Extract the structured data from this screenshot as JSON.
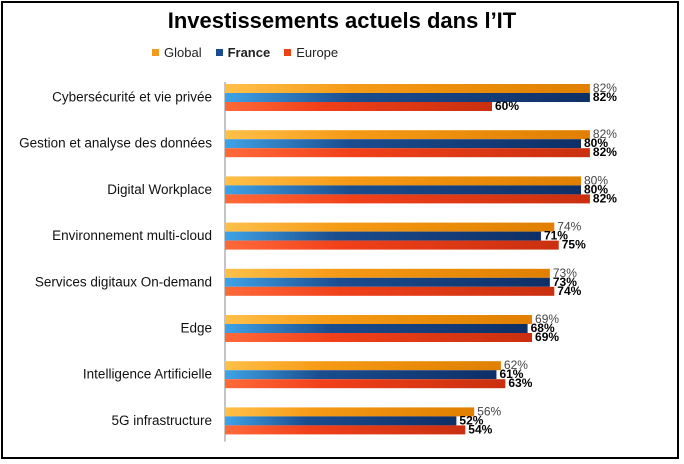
{
  "chart_data": {
    "type": "bar",
    "orientation": "horizontal",
    "title": "Investissements actuels dans l’IT",
    "categories": [
      "Cybersécurité et vie privée",
      "Gestion et analyse des données",
      "Digital Workplace",
      "Environnement multi-cloud",
      "Services digitaux On-demand",
      "Edge",
      "Intelligence Artificielle",
      "5G infrastructure"
    ],
    "series": [
      {
        "name": "Global",
        "values": [
          82,
          82,
          80,
          74,
          73,
          69,
          62,
          56
        ],
        "labels": [
          "82%",
          "82%",
          "80%",
          "74%",
          "73%",
          "69%",
          "62%",
          "56%"
        ],
        "color": "#f59a16",
        "bold": false
      },
      {
        "name": "France",
        "values": [
          82,
          80,
          80,
          71,
          73,
          68,
          61,
          52
        ],
        "labels": [
          "82%",
          "80%",
          "80%",
          "71%",
          "73%",
          "68%",
          "61%",
          "52%"
        ],
        "color": "#1a4d8f",
        "bold": true
      },
      {
        "name": "Europe",
        "values": [
          60,
          82,
          82,
          75,
          74,
          69,
          63,
          54
        ],
        "labels": [
          "60%",
          "82%",
          "82%",
          "75%",
          "74%",
          "69%",
          "63%",
          "54%"
        ],
        "color": "#f0401a",
        "bold": false
      }
    ],
    "xlim": [
      0,
      100
    ],
    "grid": false,
    "legend_position": "top"
  }
}
